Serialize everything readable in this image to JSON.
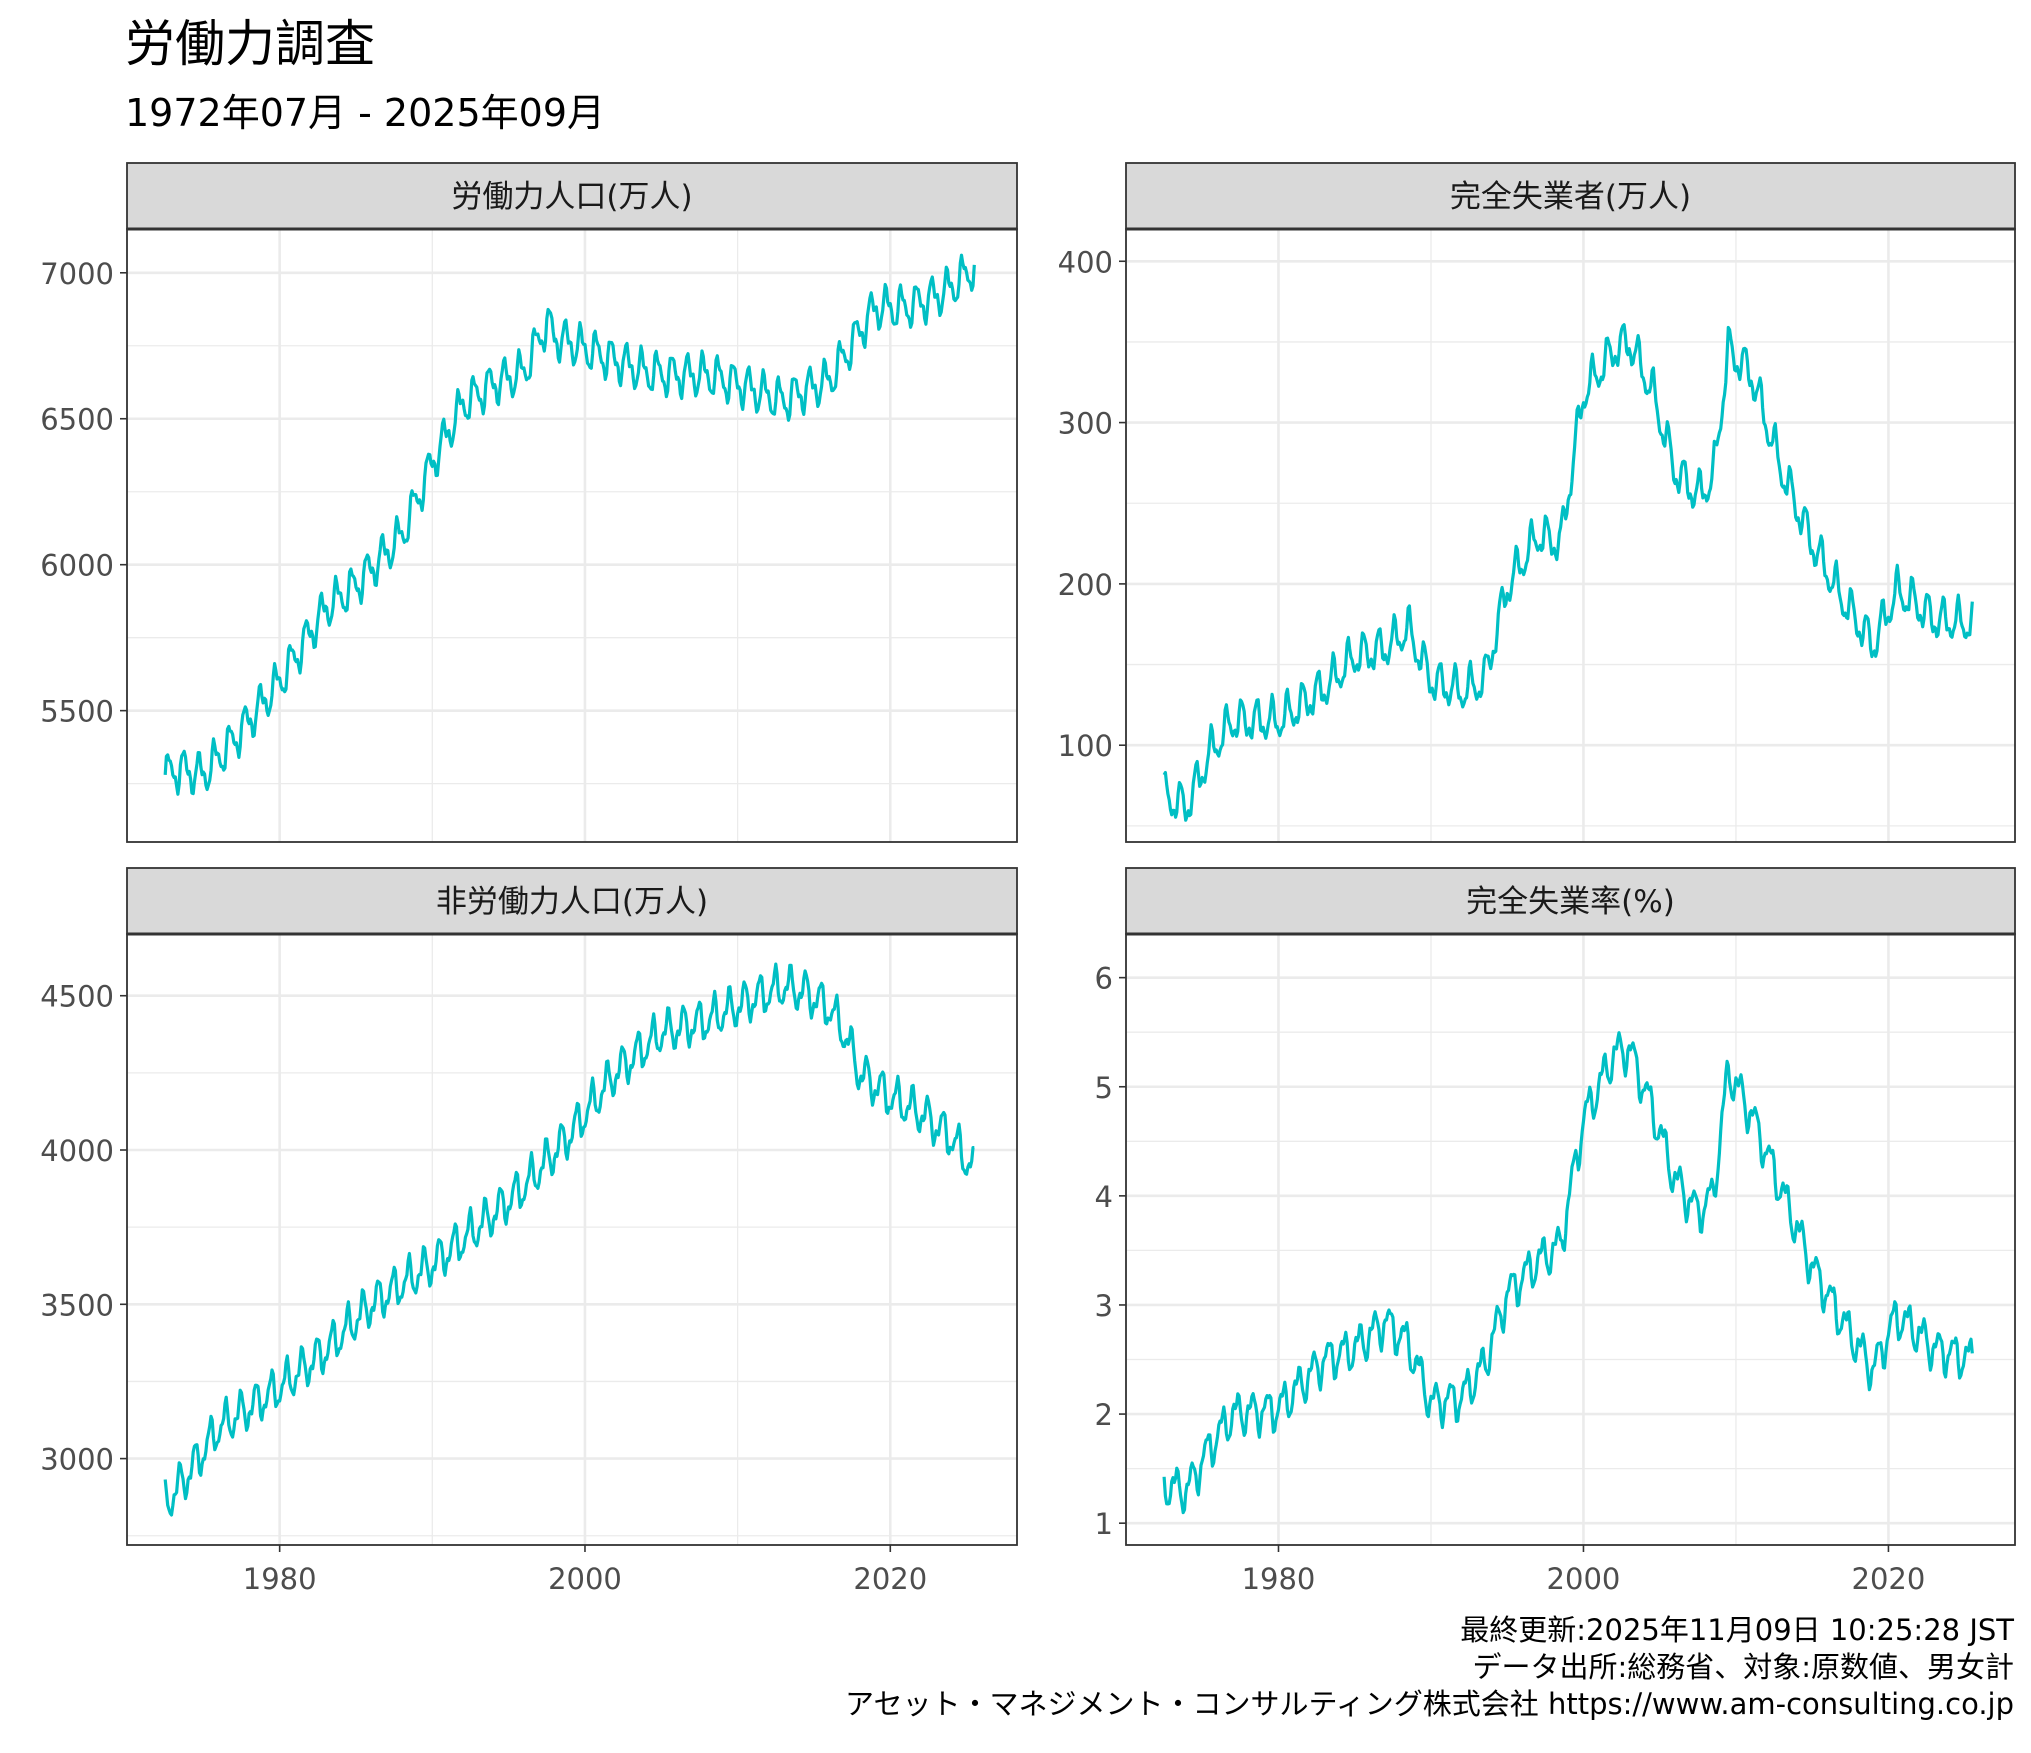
{
  "title": "労働力調査",
  "subtitle": "1972年07月 - 2025年09月",
  "caption": {
    "line1": "最終更新:2025年11月09日 10:25:28 JST",
    "line2": "データ出所:総務省、対象:原数値、男女計",
    "line3": "アセット・マネジメント・コンサルティング株式会社 https://www.am-consulting.co.jp"
  },
  "colors": {
    "line": "#00BFC4",
    "strip": "#D9D9D9",
    "grid": "#EBEBEB",
    "border": "#333333",
    "axis_text": "#4D4D4D"
  },
  "chart_data": [
    {
      "type": "line",
      "panel": "top-left",
      "title": "労働力人口(万人)",
      "x_ticks": [
        1980,
        2000,
        2020
      ],
      "y_ticks": [
        5500,
        6000,
        6500,
        7000
      ],
      "ylim": [
        5050,
        7150
      ],
      "xlim": [
        1970.0,
        2028.3
      ],
      "x": [
        1972.5,
        1973.5,
        1975,
        1977,
        1980,
        1983,
        1985,
        1988,
        1990,
        1992,
        1994,
        1996,
        1997.5,
        1998,
        2000,
        2002,
        2004,
        2006,
        2008,
        2010,
        2012,
        2013,
        2014,
        2016,
        2018,
        2019,
        2020,
        2021,
        2022,
        2023,
        2024,
        2025.5
      ],
      "values": [
        5280,
        5300,
        5280,
        5400,
        5600,
        5850,
        5930,
        6100,
        6350,
        6550,
        6620,
        6660,
        6830,
        6780,
        6740,
        6700,
        6660,
        6650,
        6650,
        6620,
        6580,
        6560,
        6590,
        6630,
        6800,
        6880,
        6880,
        6880,
        6900,
        6920,
        6950,
        7020
      ],
      "series": "seasonal-monthly"
    },
    {
      "type": "line",
      "panel": "top-right",
      "title": "完全失業者(万人)",
      "x_ticks": [
        1980,
        2000,
        2020
      ],
      "y_ticks": [
        100,
        200,
        300,
        400
      ],
      "ylim": [
        40,
        420
      ],
      "xlim": [
        1970.0,
        2028.3
      ],
      "x": [
        1972.5,
        1974,
        1975.5,
        1977,
        1980,
        1983,
        1985,
        1987,
        1988.5,
        1990,
        1992,
        1993.5,
        1995,
        1997,
        1998.5,
        2000,
        2002,
        2003,
        2004.5,
        2006,
        2007.5,
        2008.5,
        2009.5,
        2011,
        2013,
        2015,
        2017,
        2019,
        2020.5,
        2021.5,
        2023,
        2025.5
      ],
      "values": [
        68,
        62,
        95,
        115,
        115,
        135,
        155,
        160,
        172,
        140,
        133,
        140,
        198,
        230,
        225,
        318,
        345,
        350,
        320,
        270,
        255,
        265,
        345,
        330,
        270,
        225,
        190,
        162,
        195,
        190,
        178,
        175
      ],
      "series": "seasonal-monthly"
    },
    {
      "type": "line",
      "panel": "bottom-left",
      "title": "非労働力人口(万人)",
      "x_ticks": [
        1980,
        2000,
        2020
      ],
      "y_ticks": [
        3000,
        3500,
        4000,
        4500
      ],
      "ylim": [
        2720,
        4700
      ],
      "xlim": [
        1970.0,
        2028.3
      ],
      "x": [
        1972.5,
        1974,
        1976,
        1980,
        1983,
        1986,
        1990,
        1993,
        1996,
        1999,
        2002,
        2005,
        2008,
        2011,
        2013,
        2014.5,
        2016,
        2017,
        2018,
        2020,
        2022,
        2024,
        2025.5
      ],
      "values": [
        2850,
        2950,
        3100,
        3230,
        3350,
        3500,
        3630,
        3750,
        3880,
        4050,
        4250,
        4380,
        4420,
        4490,
        4530,
        4510,
        4460,
        4380,
        4250,
        4170,
        4120,
        4040,
        3930
      ],
      "series": "seasonal-monthly"
    },
    {
      "type": "line",
      "panel": "bottom-right",
      "title": "完全失業率(%)",
      "x_ticks": [
        1980,
        2000,
        2020
      ],
      "y_ticks": [
        1,
        2,
        3,
        4,
        5,
        6
      ],
      "ylim": [
        0.8,
        6.4
      ],
      "xlim": [
        1970.0,
        2028.3
      ],
      "x": [
        1972.5,
        1974,
        1975.5,
        1977,
        1980,
        1983,
        1985,
        1987,
        1988.5,
        1990,
        1992,
        1993.5,
        1995,
        1997,
        1998.5,
        2000,
        2002,
        2003,
        2004.5,
        2006,
        2007.5,
        2008.5,
        2009.5,
        2011,
        2013,
        2015,
        2017,
        2019,
        2020.5,
        2021.5,
        2023,
        2025.5
      ],
      "values": [
        1.35,
        1.3,
        1.7,
        2.0,
        2.05,
        2.5,
        2.6,
        2.85,
        2.65,
        2.1,
        2.15,
        2.45,
        3.1,
        3.4,
        3.55,
        4.7,
        5.3,
        5.35,
        4.8,
        4.15,
        3.85,
        4.0,
        5.15,
        4.75,
        4.05,
        3.35,
        2.85,
        2.4,
        2.9,
        2.8,
        2.6,
        2.5
      ],
      "series": "seasonal-monthly"
    }
  ]
}
